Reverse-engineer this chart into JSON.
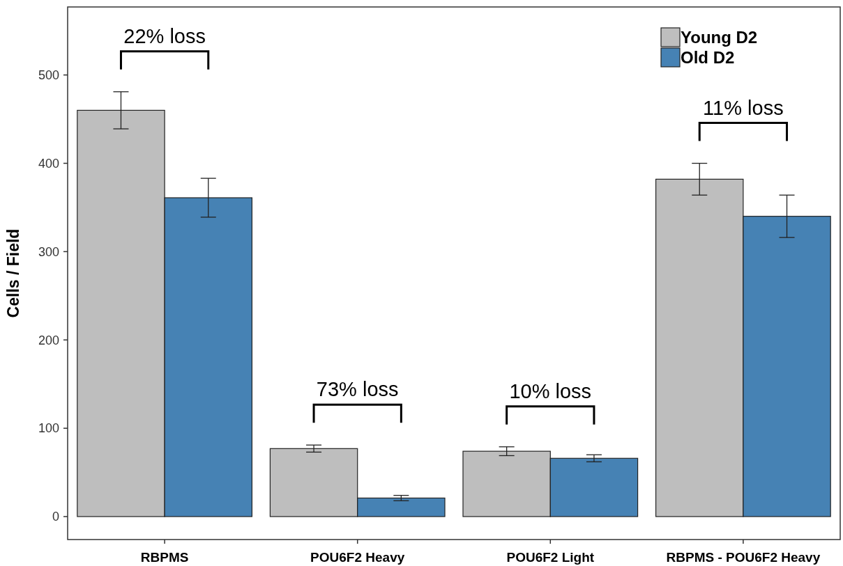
{
  "chart_data": {
    "type": "bar",
    "ylabel": "Cells / Field",
    "categories": [
      "RBPMS",
      "POU6F2 Heavy",
      "POU6F2 Light",
      "RBPMS - POU6F2 Heavy"
    ],
    "series": [
      {
        "name": "Young D2",
        "color": "#bebebe",
        "values": [
          460,
          77,
          74,
          382
        ],
        "errors": [
          21,
          4,
          5,
          18
        ]
      },
      {
        "name": "Old D2",
        "color": "#4682b4",
        "values": [
          361,
          21,
          66,
          340
        ],
        "errors": [
          22,
          3,
          4,
          24
        ]
      }
    ],
    "ylim": [
      -26,
      577
    ],
    "yticks": [
      0,
      100,
      200,
      300,
      400,
      500
    ],
    "grid": false,
    "legend": "top right",
    "annotations": [
      "22% loss",
      "73% loss",
      "10% loss",
      "11% loss"
    ]
  }
}
